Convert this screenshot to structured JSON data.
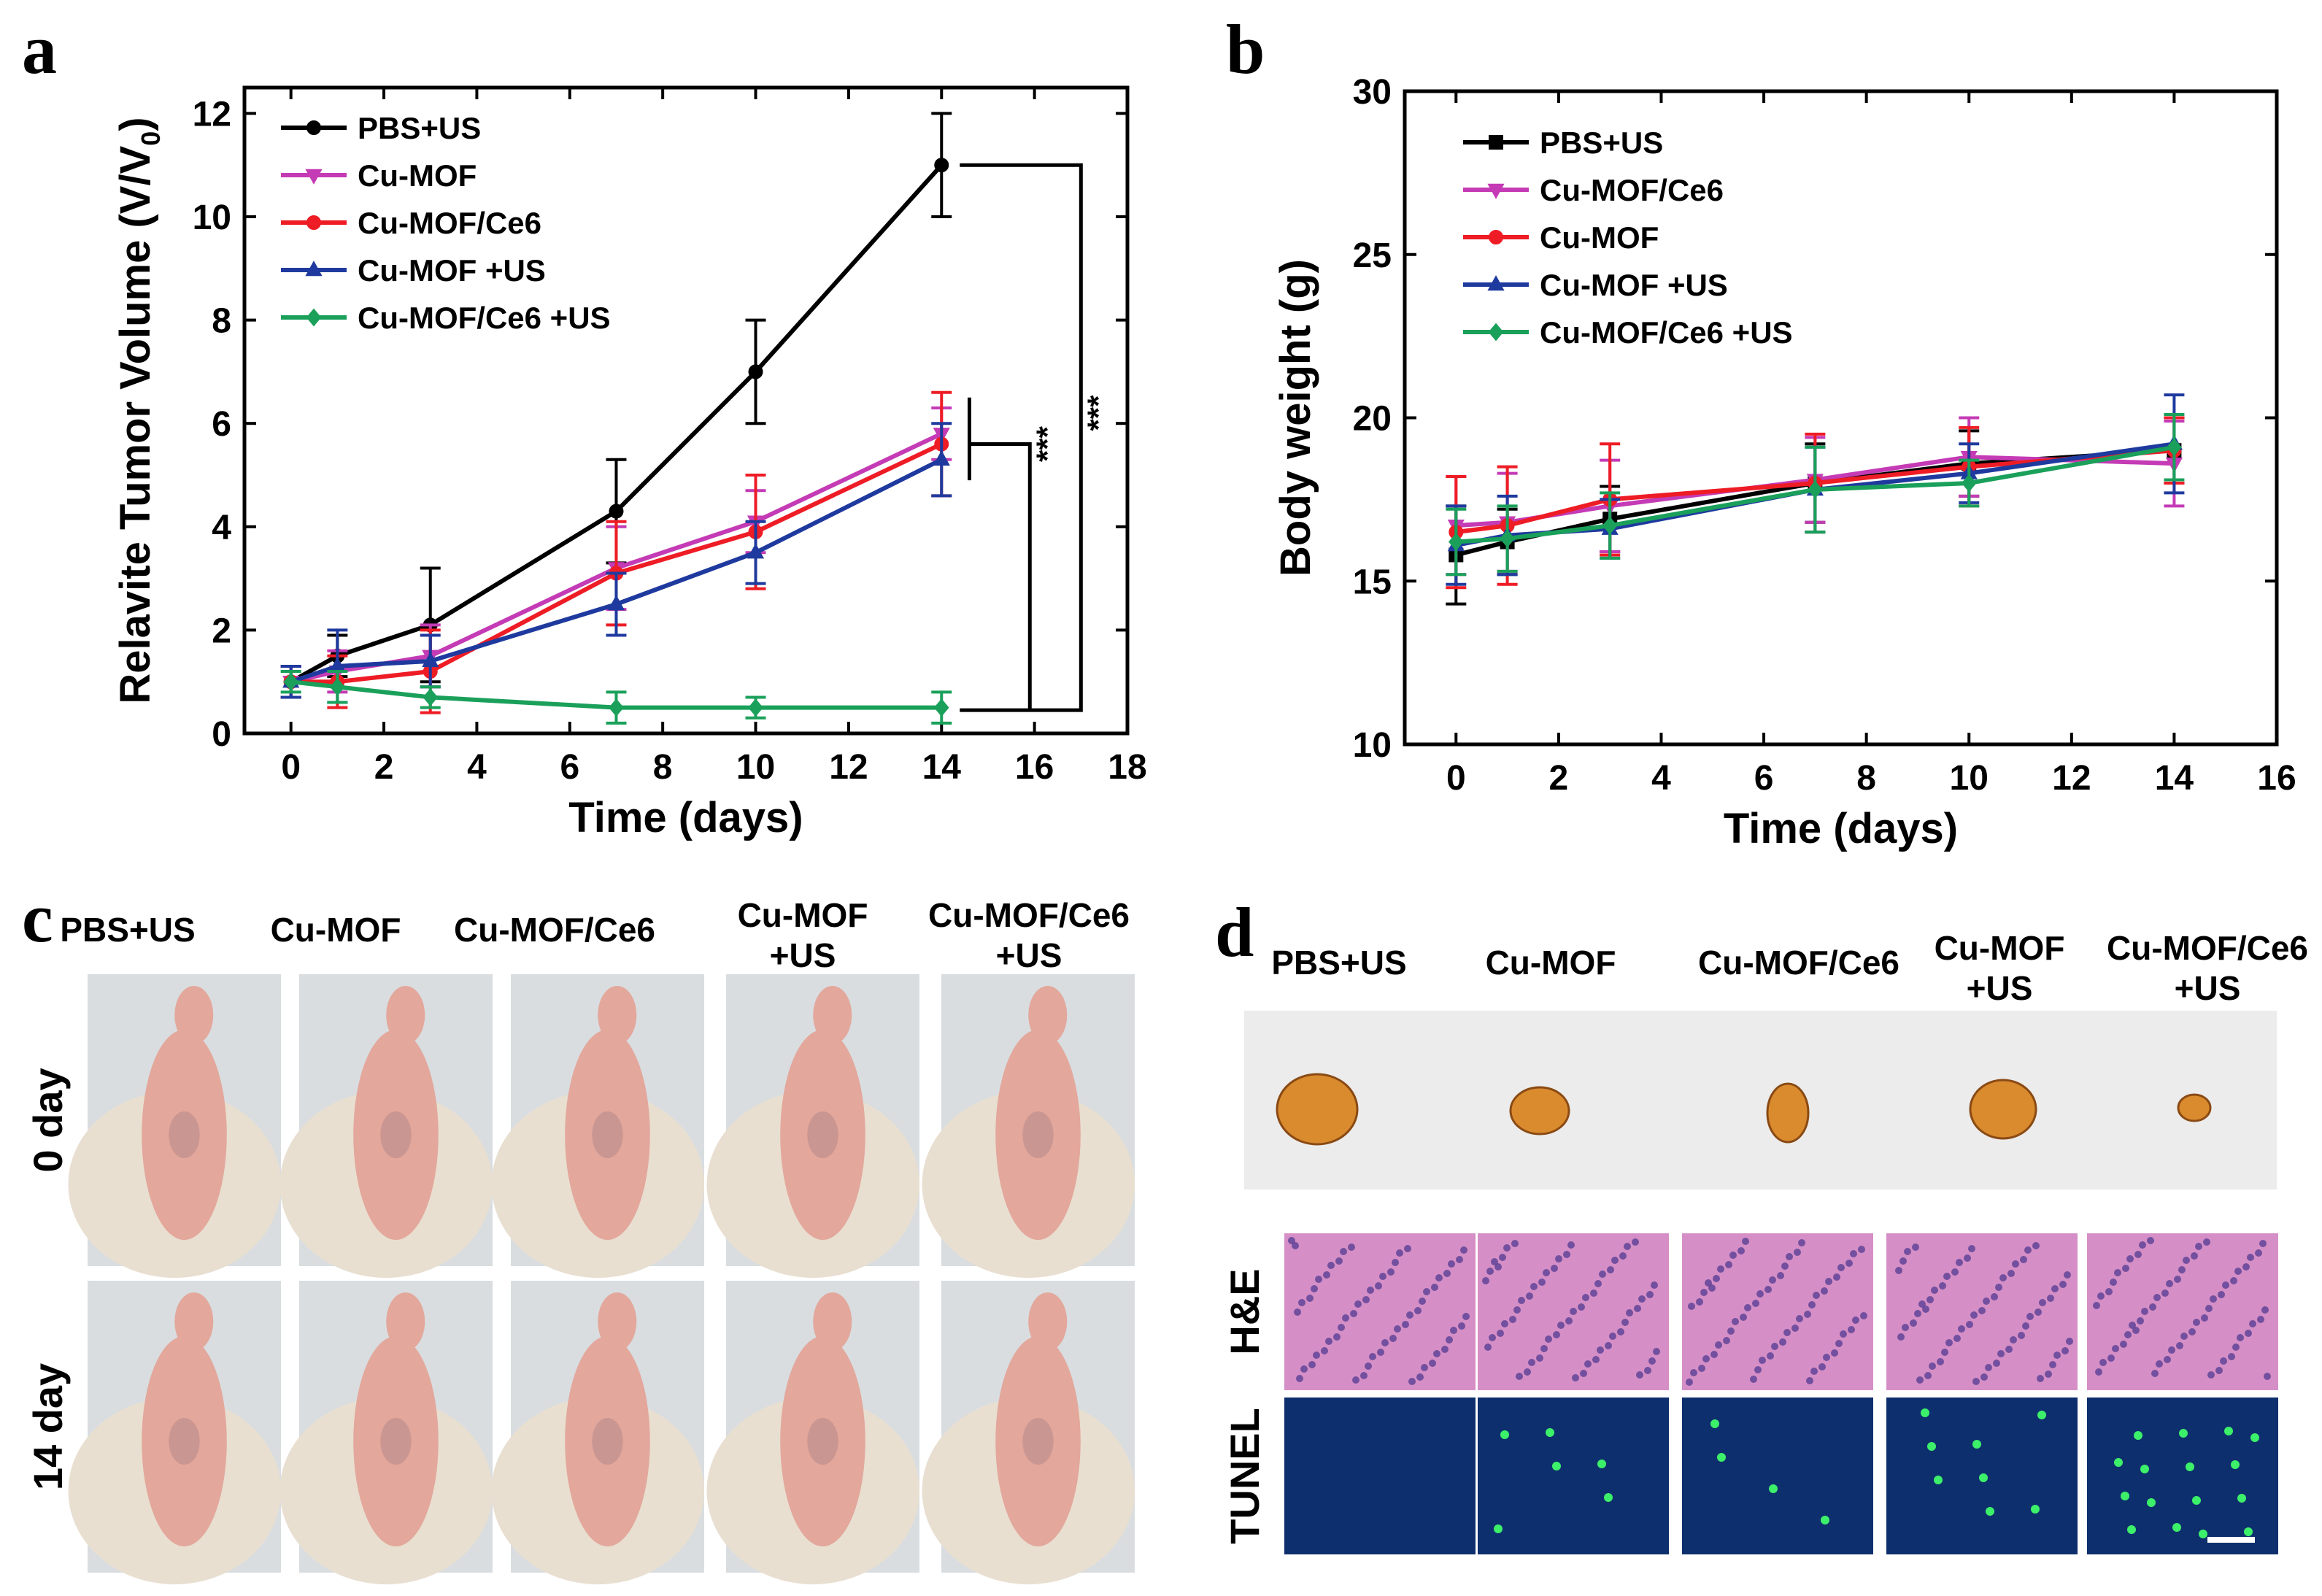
{
  "figure": {
    "panel_labels": [
      "a",
      "b",
      "c",
      "d"
    ]
  },
  "chart_data": [
    {
      "panel": "a",
      "type": "line",
      "xlabel": "Time (days)",
      "ylabel": "Relavite Tumor Volume (V/V",
      "ylabel_sub": "0",
      "ylabel_close": ")",
      "xlim": [
        -1,
        18
      ],
      "ylim": [
        0,
        12.5
      ],
      "xticks": [
        0,
        2,
        4,
        6,
        8,
        10,
        12,
        14,
        16,
        18
      ],
      "yticks": [
        0,
        2,
        4,
        6,
        8,
        10,
        12
      ],
      "x": [
        0,
        1,
        3,
        7,
        10,
        14
      ],
      "series": [
        {
          "name": "PBS+US",
          "color": "#000000",
          "marker": "circle",
          "values": [
            1.0,
            1.5,
            2.1,
            4.3,
            7.0,
            11.0
          ],
          "errors": [
            0.3,
            0.4,
            1.1,
            1.0,
            1.0,
            1.0
          ]
        },
        {
          "name": "Cu-MOF",
          "color": "#c43bb5",
          "marker": "triangle-down",
          "values": [
            1.0,
            1.2,
            1.5,
            3.2,
            4.1,
            5.8
          ],
          "errors": [
            0.3,
            0.4,
            0.6,
            0.8,
            0.6,
            0.5
          ]
        },
        {
          "name": "Cu-MOF/Ce6",
          "color": "#ee1c25",
          "marker": "circle",
          "values": [
            1.0,
            1.0,
            1.2,
            3.1,
            3.9,
            5.6
          ],
          "errors": [
            0.3,
            0.5,
            0.8,
            1.0,
            1.1,
            1.0
          ]
        },
        {
          "name": "Cu-MOF +US",
          "color": "#1f3a9e",
          "marker": "triangle-up",
          "values": [
            1.0,
            1.3,
            1.4,
            2.5,
            3.5,
            5.3
          ],
          "errors": [
            0.3,
            0.7,
            0.5,
            0.6,
            0.6,
            0.7
          ]
        },
        {
          "name": "Cu-MOF/Ce6 +US",
          "color": "#1aa05a",
          "marker": "diamond",
          "values": [
            1.0,
            0.9,
            0.7,
            0.5,
            0.5,
            0.5
          ],
          "errors": [
            0.2,
            0.3,
            0.2,
            0.3,
            0.2,
            0.3
          ]
        }
      ],
      "annotations": [
        {
          "text": "***",
          "between": [
            "PBS+US",
            "Cu-MOF/Ce6 +US"
          ]
        },
        {
          "text": "***",
          "between": [
            "Cu-MOF group",
            "Cu-MOF/Ce6 +US"
          ]
        }
      ],
      "legend": "top-left"
    },
    {
      "panel": "b",
      "type": "line",
      "xlabel": "Time (days)",
      "ylabel": "Body weight (g)",
      "xlim": [
        -1,
        16
      ],
      "ylim": [
        10,
        30
      ],
      "xticks": [
        0,
        2,
        4,
        6,
        8,
        10,
        12,
        14,
        16
      ],
      "yticks": [
        10,
        15,
        20,
        25,
        30
      ],
      "x": [
        0,
        1,
        3,
        7,
        10,
        14
      ],
      "series": [
        {
          "name": "PBS+US",
          "color": "#000000",
          "marker": "square",
          "values": [
            15.8,
            16.2,
            16.9,
            18.0,
            18.6,
            19.0
          ],
          "errors": [
            1.5,
            1.0,
            1.0,
            1.2,
            1.0,
            1.0
          ]
        },
        {
          "name": "Cu-MOF/Ce6",
          "color": "#c43bb5",
          "marker": "triangle-down",
          "values": [
            16.7,
            16.8,
            17.3,
            18.1,
            18.8,
            18.6
          ],
          "errors": [
            1.5,
            1.5,
            1.4,
            1.3,
            1.2,
            1.3
          ]
        },
        {
          "name": "Cu-MOF",
          "color": "#ee1c25",
          "marker": "circle",
          "values": [
            16.5,
            16.7,
            17.5,
            18.0,
            18.5,
            19.0
          ],
          "errors": [
            1.7,
            1.8,
            1.7,
            1.5,
            1.2,
            1.0
          ]
        },
        {
          "name": "Cu-MOF +US",
          "color": "#1f3a9e",
          "marker": "triangle-up",
          "values": [
            16.1,
            16.4,
            16.6,
            17.8,
            18.3,
            19.2
          ],
          "errors": [
            1.2,
            1.2,
            0.9,
            1.3,
            0.9,
            1.5
          ]
        },
        {
          "name": "Cu-MOF/Ce6 +US",
          "color": "#1aa05a",
          "marker": "diamond",
          "values": [
            16.2,
            16.3,
            16.7,
            17.8,
            18.0,
            19.1
          ],
          "errors": [
            1.0,
            1.0,
            1.0,
            1.3,
            0.7,
            1.0
          ]
        }
      ],
      "legend": "top-left"
    }
  ],
  "panel_c": {
    "columns": [
      "PBS+US",
      "Cu-MOF",
      "Cu-MOF/Ce6",
      "Cu-MOF\n+US",
      "Cu-MOF/Ce6\n+US"
    ],
    "rows": [
      "0 day",
      "14 day"
    ]
  },
  "panel_d": {
    "columns": [
      "PBS+US",
      "Cu-MOF",
      "Cu-MOF/Ce6",
      "Cu-MOF\n+US",
      "Cu-MOF/Ce6\n+US"
    ],
    "rows": [
      "H&E",
      "TUNEL"
    ]
  },
  "colors": {
    "black": "#000000",
    "magenta": "#c43bb5",
    "red": "#ee1c25",
    "blue": "#1f3a9e",
    "green": "#1aa05a",
    "skin": "#e3a79b",
    "glove": "#e8dfd1",
    "photo_bg": "#d9dde0",
    "tray": "#ececec",
    "he_pink": "#d58fc6",
    "he_nuclei": "#5a3f95",
    "tunel_bg": "#0e2f6d",
    "tunel_spot": "#3cf06a"
  }
}
